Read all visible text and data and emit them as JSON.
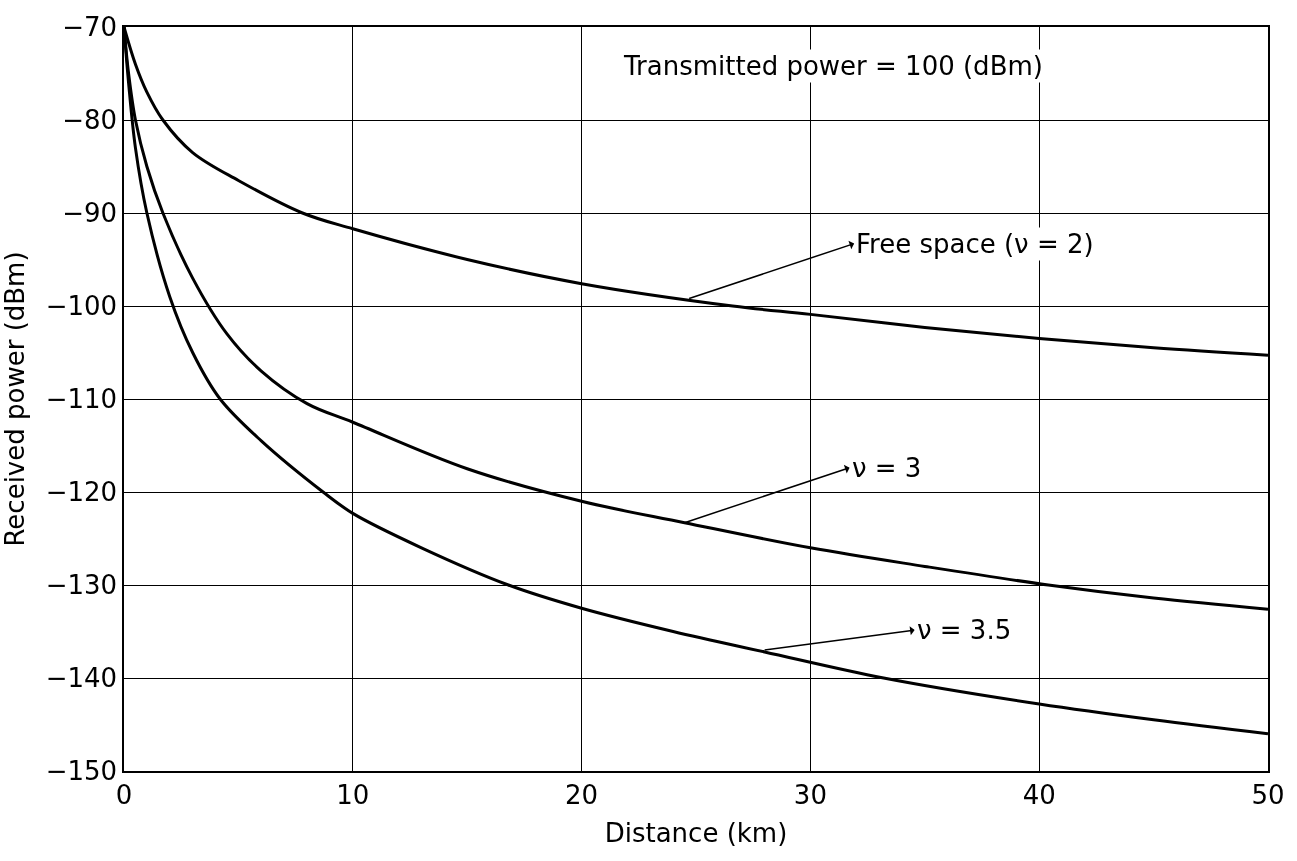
{
  "chart_data": {
    "type": "line",
    "xlabel": "Distance (km)",
    "ylabel": "Received power (dBm)",
    "xlim": [
      0,
      50
    ],
    "ylim": [
      -150,
      -70
    ],
    "xticks": [
      0,
      10,
      20,
      30,
      40,
      50
    ],
    "yticks": [
      -150,
      -140,
      -130,
      -120,
      -110,
      -100,
      -90,
      -80,
      -70
    ],
    "grid": true,
    "marker": "none",
    "line_style": "solid",
    "series": [
      {
        "color": "#000000",
        "x": [
          0,
          0.5,
          1,
          1.7,
          3,
          5,
          7.8,
          10,
          15,
          20,
          26.6,
          30,
          35,
          40,
          45,
          50
        ],
        "values": [
          -70,
          -74,
          -77,
          -80,
          -83.5,
          -86.5,
          -90,
          -91.7,
          -95,
          -97.6,
          -100,
          -100.9,
          -102.3,
          -103.5,
          -104.5,
          -105.3
        ]
      },
      {
        "color": "#000000",
        "x": [
          0,
          0.2,
          0.5,
          1,
          1.7,
          3,
          4.5,
          6,
          8,
          10,
          15,
          20,
          24.5,
          30,
          35,
          40.4,
          45,
          50
        ],
        "values": [
          -70,
          -75,
          -80,
          -85,
          -90,
          -97,
          -103,
          -107,
          -110.5,
          -112.5,
          -117.5,
          -121,
          -123.3,
          -126,
          -128,
          -130,
          -131.4,
          -132.6
        ]
      },
      {
        "color": "#000000",
        "x": [
          0,
          0.2,
          0.5,
          1,
          2,
          3,
          4.2,
          6,
          8.7,
          10,
          13,
          16.8,
          20,
          24,
          28,
          33.2,
          40,
          45,
          50
        ],
        "values": [
          -70,
          -76,
          -83,
          -90,
          -99,
          -105,
          -110,
          -114.5,
          -120,
          -122.3,
          -126,
          -130,
          -132.5,
          -135,
          -137.2,
          -140,
          -142.8,
          -144.5,
          -146
        ]
      }
    ],
    "annotations": [
      "Transmitted power = 100 (dBm)",
      {
        "text": "Free space (ν = 2)",
        "x": 24.7,
        "y": -99.2
      },
      {
        "text": "ν = 3",
        "x": 24.5,
        "y": -123.3
      },
      {
        "text": "ν = 3.5",
        "x": 28,
        "y": -137
      }
    ]
  }
}
